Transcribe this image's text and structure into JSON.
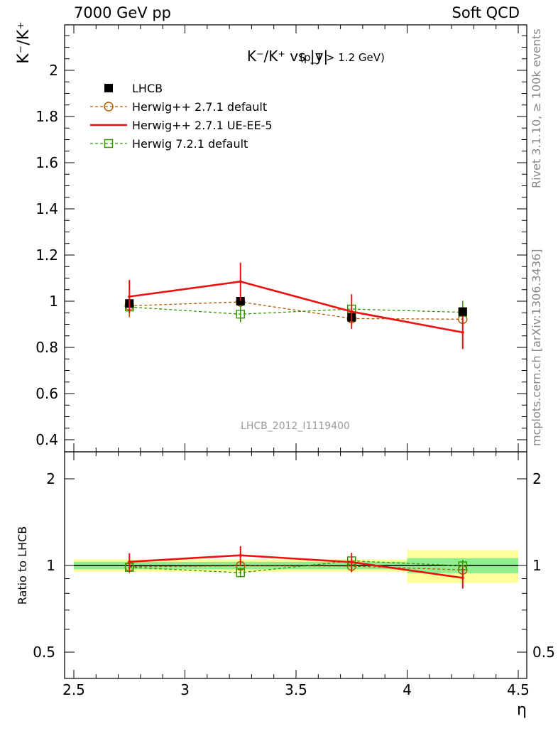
{
  "header": {
    "left": "7000 GeV pp",
    "right": "Soft QCD"
  },
  "side_labels": {
    "rivet": "Rivet 3.1.10, ≥ 100k events",
    "mcplots": "mcplots.cern.ch [arXiv:1306.3436]"
  },
  "colors": {
    "data": "#000000",
    "herwigpp_default": "#b35900",
    "herwigpp_ueee5": "#ee1111",
    "herwig7_default": "#339900",
    "band_inner": "#90ee90",
    "band_outer": "#ffff99"
  },
  "chart_data": [
    {
      "type": "scatter",
      "title": "K⁻/K⁺ vs |y|",
      "title_suffix": "(p_T > 1.2 GeV)",
      "ylabel": "K⁻/K⁺",
      "xlabel": "",
      "watermark": "LHCB_2012_I1119400",
      "xlim": [
        2.5,
        4.5
      ],
      "ylim": [
        0.37,
        2.2
      ],
      "yticks": [
        "0.4",
        "0.6",
        "0.8",
        "1",
        "1.2",
        "1.4",
        "1.6",
        "1.8",
        "2"
      ],
      "grid": false,
      "legend_position": "top-left",
      "series": [
        {
          "name": "LHCB",
          "style": "data",
          "x": [
            2.75,
            3.25,
            3.75,
            4.25
          ],
          "y": [
            0.99,
            1.0,
            0.93,
            0.955
          ],
          "err": [
            0.005,
            0.005,
            0.01,
            0.01
          ]
        },
        {
          "name": "Herwig++ 2.7.1 default",
          "style": "circle-dashed",
          "x": [
            2.75,
            3.25,
            3.75,
            4.25
          ],
          "y": [
            0.98,
            0.997,
            0.925,
            0.922
          ],
          "err": [
            0.05,
            0.005,
            0.01,
            0.01
          ]
        },
        {
          "name": "Herwig++ 2.7.1 UE-EE-5",
          "style": "solid",
          "x": [
            2.75,
            3.25,
            3.75,
            4.25
          ],
          "y": [
            1.02,
            1.085,
            0.955,
            0.865
          ],
          "err": [
            0.072,
            0.082,
            0.075,
            0.072
          ]
        },
        {
          "name": "Herwig 7.2.1 default",
          "style": "square-dashed",
          "x": [
            2.75,
            3.25,
            3.75,
            4.25
          ],
          "y": [
            0.975,
            0.944,
            0.966,
            0.952
          ],
          "err": [
            0.02,
            0.035,
            0.05,
            0.05
          ]
        }
      ]
    },
    {
      "type": "scatter",
      "ylabel": "Ratio to LHCB",
      "xlabel": "η",
      "xlim": [
        2.5,
        4.5
      ],
      "ylim": [
        0.4,
        2.4
      ],
      "yscale": "log",
      "xticks": [
        "2.5",
        "3",
        "3.5",
        "4",
        "4.5"
      ],
      "yticks": [
        "0.5",
        "1",
        "2"
      ],
      "ratio_band": {
        "x_edges": [
          2.5,
          3.0,
          3.5,
          4.0,
          4.5
        ],
        "inner": [
          0.03,
          0.03,
          0.03,
          0.06
        ],
        "outer": [
          0.05,
          0.05,
          0.05,
          0.13
        ]
      },
      "series": [
        {
          "name": "Herwig++ 2.7.1 default",
          "x": [
            2.75,
            3.25,
            3.75,
            4.25
          ],
          "y": [
            0.99,
            0.997,
            0.995,
            0.965
          ],
          "err": [
            0.05,
            0.005,
            0.01,
            0.01
          ]
        },
        {
          "name": "Herwig++ 2.7.1 UE-EE-5",
          "x": [
            2.75,
            3.25,
            3.75,
            4.25
          ],
          "y": [
            1.03,
            1.085,
            1.027,
            0.906
          ],
          "err": [
            0.073,
            0.082,
            0.08,
            0.075
          ]
        },
        {
          "name": "Herwig 7.2.1 default",
          "x": [
            2.75,
            3.25,
            3.75,
            4.25
          ],
          "y": [
            0.985,
            0.944,
            1.038,
            0.997
          ],
          "err": [
            0.02,
            0.035,
            0.05,
            0.05
          ]
        }
      ]
    }
  ]
}
